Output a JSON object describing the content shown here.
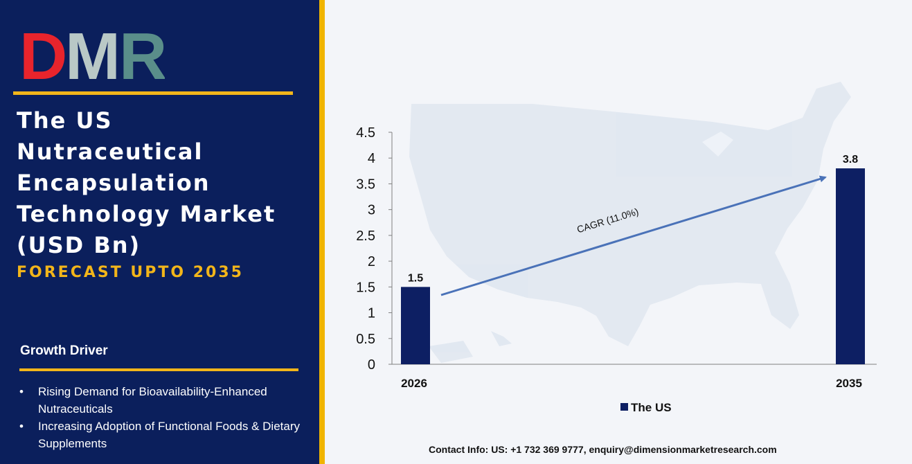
{
  "brand": {
    "logo_text": "DMR",
    "logo_colors": {
      "d": "#e8242c",
      "m": "#b9c8c6",
      "r": "#5a8e8a"
    }
  },
  "title": [
    "The US",
    "Nutraceutical",
    "Encapsulation",
    "Technology Market",
    "(USD Bn)"
  ],
  "subtitle": "FORECAST UPTO 2035",
  "growth_driver": {
    "heading": "Growth Driver",
    "items": [
      "Rising Demand for Bioavailability-Enhanced Nutraceuticals",
      "Increasing Adoption of Functional Foods & Dietary Supplements"
    ]
  },
  "colors": {
    "left_bg": "#0b1f5c",
    "accent": "#f2b51a",
    "bar": "#0d1f63",
    "arrow": "#4a72b8"
  },
  "chart_data": {
    "type": "bar",
    "categories": [
      "2026",
      "2035"
    ],
    "series": [
      {
        "name": "The US",
        "values": [
          1.5,
          3.8
        ]
      }
    ],
    "data_labels": [
      "1.5",
      "3.8"
    ],
    "ylim": [
      0,
      4.5
    ],
    "yticks": [
      "0",
      "0.5",
      "1",
      "1.5",
      "2",
      "2.5",
      "3",
      "3.5",
      "4",
      "4.5"
    ],
    "annotation": "CAGR (11.0%)",
    "legend_position": "bottom",
    "grid": false
  },
  "contact": "Contact Info: US: +1 732 369 9777, enquiry@dimensionmarketresearch.com"
}
